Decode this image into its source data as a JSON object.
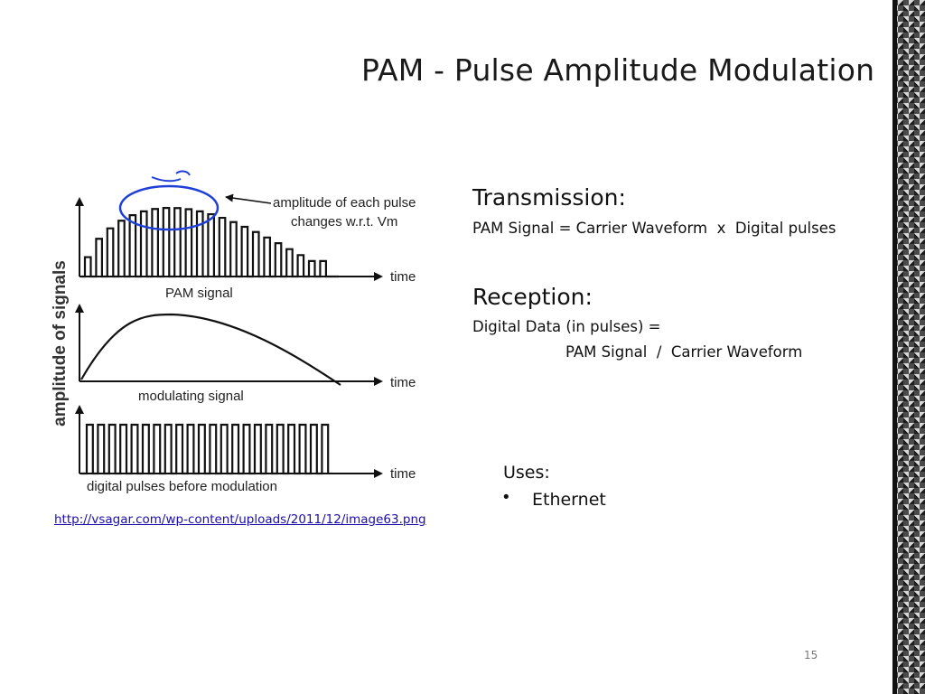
{
  "slide": {
    "title": "PAM - Pulse Amplitude Modulation",
    "page_number": "15",
    "source_link": "http://vsagar.com/wp-content/uploads/2011/12/image63.png"
  },
  "transmission": {
    "heading": "Transmission:",
    "line": "PAM Signal = Carrier Waveform  x  Digital pulses"
  },
  "reception": {
    "heading": "Reception:",
    "line1": "Digital Data (in pulses) =",
    "line2": "PAM Signal  /  Carrier Waveform"
  },
  "uses": {
    "heading": "Uses:",
    "items": [
      "Ethernet"
    ]
  },
  "diagram": {
    "y_axis_label": "amplitude of signals",
    "annotation": "amplitude of each pulse",
    "annotation_line2": "changes w.r.t. Vm",
    "panels": [
      {
        "caption": "PAM signal",
        "axis_label": "time"
      },
      {
        "caption": "modulating signal",
        "axis_label": "time"
      },
      {
        "caption": "digital pulses before modulation",
        "axis_label": "time"
      }
    ]
  }
}
